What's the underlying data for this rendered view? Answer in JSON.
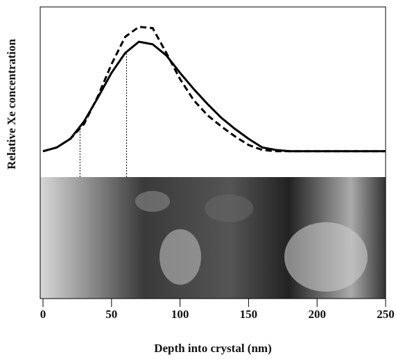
{
  "chart_data": {
    "type": "line",
    "x_label": "Depth into crystal (nm)",
    "y_label": "Relative Xe concentration",
    "x": [
      0,
      10,
      20,
      30,
      40,
      50,
      60,
      70,
      80,
      90,
      100,
      110,
      120,
      130,
      140,
      150,
      160,
      170,
      180,
      200,
      220,
      250
    ],
    "series": [
      {
        "style": "solid",
        "color": "#000000",
        "values": [
          0,
          0.03,
          0.1,
          0.24,
          0.43,
          0.63,
          0.79,
          0.88,
          0.86,
          0.77,
          0.63,
          0.5,
          0.38,
          0.27,
          0.18,
          0.1,
          0.03,
          0.01,
          0,
          0,
          0,
          0
        ]
      },
      {
        "style": "dashed",
        "color": "#000000",
        "values": [
          0,
          0.03,
          0.1,
          0.22,
          0.44,
          0.7,
          0.92,
          1.0,
          0.99,
          0.79,
          0.58,
          0.41,
          0.29,
          0.2,
          0.12,
          0.05,
          0.01,
          0,
          0,
          0,
          0,
          0
        ]
      }
    ],
    "vlines": [
      27,
      61
    ],
    "xlim": [
      0,
      250
    ],
    "xticks": [
      0,
      50,
      100,
      150,
      200,
      250
    ],
    "ylim": [
      -0.18,
      1.16
    ]
  }
}
